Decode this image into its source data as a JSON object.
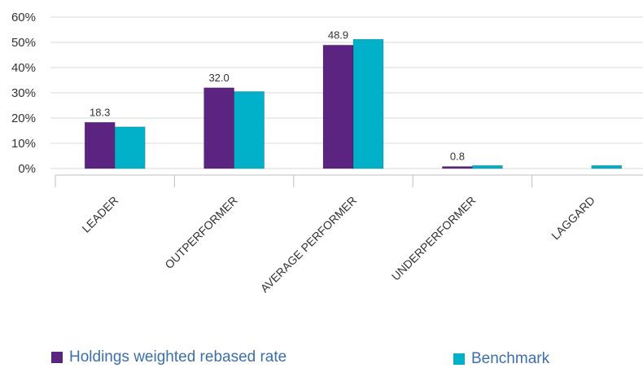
{
  "chart_data": {
    "type": "bar",
    "categories": [
      "LEADER",
      "OUTPERFORMER",
      "AVERAGE PERFORMER",
      "UNDERPERFORMER",
      "LAGGARD"
    ],
    "series": [
      {
        "name": "Holdings weighted rebased rate",
        "values": [
          18.3,
          32.0,
          48.9,
          0.8,
          0.0
        ],
        "data_labels": [
          "18.3",
          "32.0",
          "48.9",
          "0.8",
          ""
        ],
        "color": "#5b2480"
      },
      {
        "name": "Benchmark",
        "values": [
          16.5,
          30.5,
          51.2,
          1.2,
          1.2
        ],
        "data_labels": [
          "",
          "",
          "",
          "",
          ""
        ],
        "color": "#00b1c9"
      }
    ],
    "y_ticks": [
      "0%",
      "10%",
      "20%",
      "30%",
      "40%",
      "50%",
      "60%"
    ],
    "ylim": [
      0,
      60
    ],
    "grid": true,
    "legend_position": "bottom",
    "title": "",
    "xlabel": "",
    "ylabel": ""
  },
  "colors": {
    "grid": "#d9d9d9",
    "axis": "#bfbfbf",
    "text": "#333333",
    "legend_text": "#3d6fa8"
  }
}
